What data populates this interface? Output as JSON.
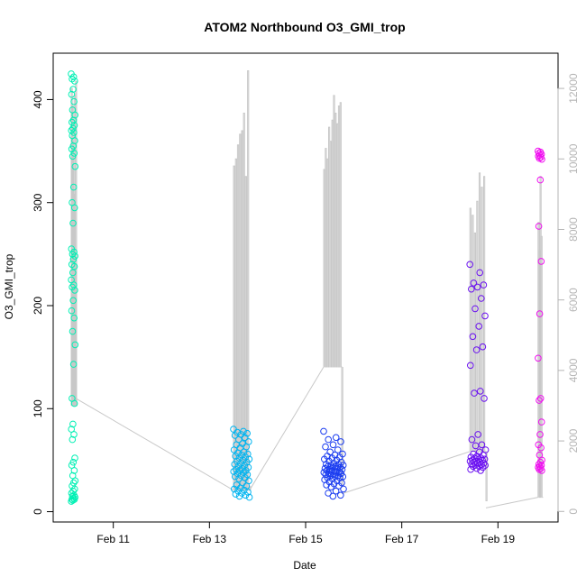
{
  "chart_data": {
    "type": "scatter",
    "title": "ATOM2 Northbound O3_GMI_trop",
    "xlabel": "Date",
    "ylabel": "O3_GMI_trop",
    "x_domain": [
      "2017-02-09T18:00",
      "2017-02-20T06:00"
    ],
    "x_ticks": [
      {
        "date": "2017-02-11",
        "label": "Feb 11"
      },
      {
        "date": "2017-02-13",
        "label": "Feb 13"
      },
      {
        "date": "2017-02-15",
        "label": "Feb 15"
      },
      {
        "date": "2017-02-17",
        "label": "Feb 17"
      },
      {
        "date": "2017-02-19",
        "label": "Feb 19"
      }
    ],
    "ylim": [
      -10,
      445
    ],
    "y_ticks": [
      0,
      100,
      200,
      300,
      400
    ],
    "secondary_axis": {
      "note": "unlabeled right axis drawn in grey for the background trace",
      "ylim": [
        -300,
        13000
      ],
      "ticks": [
        0,
        2000,
        4000,
        6000,
        8000,
        10000,
        12000
      ],
      "color": "#b5b5b5"
    },
    "colors": {
      "trace": "#c8c8c8",
      "flight1": "#00f0b4",
      "flight2": "#00b4f0",
      "flight3": "#1a3cf0",
      "flight4": "#6a10f0",
      "flight5": "#f010f0"
    },
    "trace_series": {
      "color": "#c8c8c8",
      "segments": [
        {
          "start": "2017-02-10T03:00",
          "end": "2017-02-10T05:30",
          "base": 3000,
          "peaks": [
            12000,
            11500,
            10500,
            9000,
            11800,
            7000,
            12200,
            3000
          ]
        },
        {
          "start": "2017-02-13T12:00",
          "end": "2017-02-13T20:00",
          "base": 600,
          "peaks": [
            9800,
            10000,
            10400,
            10700,
            10800,
            11300,
            9500,
            12500,
            700
          ]
        },
        {
          "start": "2017-02-15T09:00",
          "end": "2017-02-15T18:00",
          "base": 4100,
          "peaks": [
            9700,
            10300,
            10000,
            10900,
            10500,
            11100,
            11800,
            11300,
            11000,
            11500,
            11600,
            700
          ]
        },
        {
          "start": "2017-02-18T10:00",
          "end": "2017-02-18T18:00",
          "base": 1700,
          "peaks": [
            8600,
            8400,
            7900,
            8800,
            9600,
            9200,
            9500,
            300
          ]
        },
        {
          "start": "2017-02-19T20:00",
          "end": "2017-02-19T22:00",
          "base": 400,
          "peaks": [
            8200,
            7400,
            9500,
            7800,
            400
          ]
        }
      ],
      "connectors": [
        {
          "x": [
            "2017-02-10T05:30",
            "2017-02-13T12:00"
          ],
          "y": [
            3200,
            600
          ]
        },
        {
          "x": [
            "2017-02-13T20:00",
            "2017-02-15T09:00"
          ],
          "y": [
            600,
            4100
          ]
        },
        {
          "x": [
            "2017-02-15T18:00",
            "2017-02-18T10:00"
          ],
          "y": [
            500,
            1700
          ]
        },
        {
          "x": [
            "2017-02-18T18:00",
            "2017-02-19T20:00"
          ],
          "y": [
            100,
            400
          ]
        }
      ]
    },
    "series": [
      {
        "color": "#00f0b4",
        "x_range": [
          "2017-02-10T03:00",
          "2017-02-10T05:00"
        ],
        "values": [
          425,
          422,
          420,
          418,
          410,
          405,
          398,
          390,
          385,
          380,
          378,
          375,
          372,
          370,
          368,
          365,
          360,
          355,
          352,
          348,
          345,
          335,
          315,
          300,
          295,
          280,
          255,
          252,
          250,
          248,
          245,
          240,
          238,
          232,
          225,
          220,
          218,
          215,
          205,
          195,
          188,
          175,
          162,
          143,
          110,
          105,
          85,
          80,
          75,
          70,
          52,
          48,
          45,
          40,
          35,
          30,
          28,
          25,
          22,
          20,
          18,
          16,
          15,
          14,
          13,
          12,
          12,
          11,
          10
        ]
      },
      {
        "color": "#00b4f0",
        "x_range": [
          "2017-02-13T12:00",
          "2017-02-13T20:00"
        ],
        "values": [
          80,
          78,
          77,
          76,
          75,
          74,
          72,
          70,
          68,
          66,
          65,
          63,
          62,
          60,
          58,
          57,
          56,
          55,
          54,
          53,
          52,
          51,
          50,
          49,
          48,
          47,
          46,
          45,
          44,
          43,
          42,
          41,
          40,
          40,
          39,
          38,
          37,
          36,
          35,
          34,
          33,
          32,
          30,
          28,
          26,
          25,
          23,
          22,
          21,
          20,
          19,
          18,
          17,
          16,
          15,
          14
        ]
      },
      {
        "color": "#1a3cf0",
        "x_range": [
          "2017-02-15T09:00",
          "2017-02-15T19:00"
        ],
        "values": [
          78,
          72,
          70,
          68,
          65,
          63,
          60,
          58,
          56,
          55,
          54,
          53,
          52,
          51,
          50,
          49,
          48,
          47,
          46,
          46,
          45,
          45,
          44,
          44,
          43,
          43,
          42,
          42,
          41,
          41,
          40,
          40,
          39,
          39,
          38,
          38,
          37,
          37,
          36,
          36,
          35,
          35,
          34,
          34,
          33,
          33,
          32,
          31,
          30,
          29,
          28,
          27,
          26,
          25,
          24,
          22,
          20,
          18,
          16,
          15
        ]
      },
      {
        "color": "#6a10f0",
        "x_range": [
          "2017-02-18T10:00",
          "2017-02-18T18:00"
        ],
        "values": [
          240,
          232,
          222,
          220,
          218,
          216,
          207,
          197,
          190,
          180,
          170,
          160,
          157,
          142,
          117,
          115,
          110,
          75,
          70,
          65,
          64,
          60,
          58,
          56,
          55,
          54,
          53,
          52,
          52,
          51,
          51,
          50,
          50,
          49,
          49,
          48,
          48,
          47,
          47,
          46,
          46,
          45,
          45,
          44,
          44,
          43,
          42,
          41,
          40
        ]
      },
      {
        "color": "#f010f0",
        "x_range": [
          "2017-02-19T20:00",
          "2017-02-19T22:00"
        ],
        "values": [
          350,
          349,
          348,
          347,
          346,
          345,
          344,
          343,
          342,
          322,
          277,
          243,
          192,
          149,
          110,
          108,
          87,
          75,
          65,
          62,
          55,
          50,
          48,
          46,
          45,
          44,
          43,
          42,
          41,
          40
        ]
      }
    ]
  }
}
